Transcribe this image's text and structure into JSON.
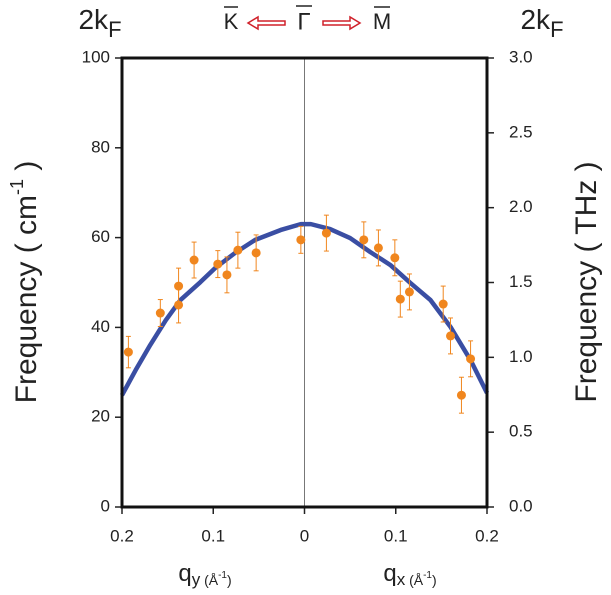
{
  "chart_data": {
    "type": "line_scatter",
    "top_left": {
      "text": "2k",
      "sub": "F"
    },
    "top_right": {
      "text": "2k",
      "sub": "F"
    },
    "direction": {
      "left": "K",
      "center": "Γ",
      "right": "M"
    },
    "y_label": {
      "text": "Frequency ( cm",
      "sup": "-1",
      "end": " )"
    },
    "y2_label": "Frequency ( THz )",
    "x_label_left": {
      "text": "q",
      "sub": "y",
      "unit": " (Å",
      "unit_sup": "-1",
      "unit_end": ")"
    },
    "x_label_right": {
      "text": "q",
      "sub": "x",
      "unit": " (Å",
      "unit_sup": "-1",
      "unit_end": ")"
    },
    "xlim": [
      -0.2,
      0.2
    ],
    "xticks": [
      {
        "value": -0.2,
        "label": "0.2"
      },
      {
        "value": -0.1,
        "label": "0.1"
      },
      0,
      0.1,
      0.2
    ],
    "ylim": [
      0,
      100
    ],
    "yticks": [
      0,
      20,
      40,
      60,
      80,
      100
    ],
    "y2lim": [
      0,
      3
    ],
    "y2ticks": [
      {
        "value": 0,
        "label": "0.0"
      },
      0.5,
      {
        "value": 1,
        "label": "1.0"
      },
      1.5,
      {
        "value": 2,
        "label": "2.0"
      },
      2.5,
      {
        "value": 3,
        "label": "3.0"
      }
    ],
    "center_line": true,
    "series": [
      {
        "type": "line",
        "color": "#3a4ea3",
        "x": [
          -0.2,
          -0.185,
          -0.169,
          -0.152,
          -0.136,
          -0.114,
          -0.098,
          -0.076,
          -0.054,
          -0.026,
          -0.004,
          0.007,
          0.028,
          0.05,
          0.072,
          0.094,
          0.116,
          0.138,
          0.16,
          0.182,
          0.2
        ],
        "values": [
          24.9,
          30.5,
          36.1,
          41.6,
          46.1,
          50.1,
          53.2,
          56.6,
          59.5,
          61.7,
          63.0,
          63.0,
          61.9,
          59.9,
          56.8,
          53.9,
          49.9,
          46.1,
          40.1,
          32.7,
          25.4
        ]
      },
      {
        "type": "scatter",
        "color": "#f0861e",
        "x": [
          -0.193,
          -0.158,
          -0.138,
          -0.138,
          -0.121,
          -0.095,
          -0.085,
          -0.073,
          -0.053,
          -0.004,
          0.024,
          0.065,
          0.081,
          0.099,
          0.105,
          0.115,
          0.152,
          0.16,
          0.172,
          0.182
        ],
        "values": [
          34.5,
          43.2,
          49.2,
          45.0,
          55.0,
          54.1,
          51.7,
          57.2,
          56.6,
          59.5,
          61.0,
          59.5,
          57.7,
          55.5,
          46.3,
          47.9,
          45.2,
          38.1,
          24.9,
          33.0
        ],
        "errors": [
          3.5,
          3,
          4,
          4,
          4,
          3,
          4,
          4,
          4,
          3,
          4,
          4,
          4,
          4,
          4,
          4,
          4,
          4,
          4,
          4
        ]
      }
    ]
  }
}
